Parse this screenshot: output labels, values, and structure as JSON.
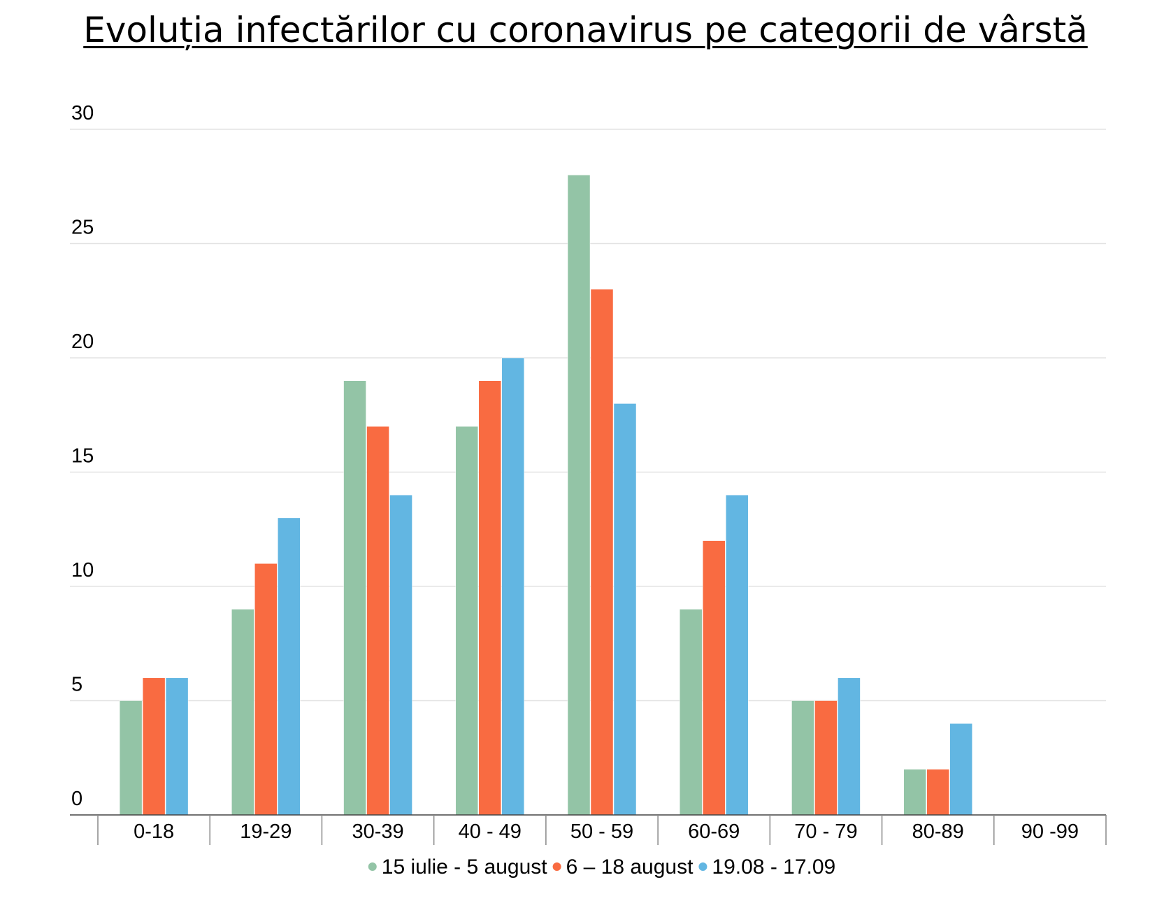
{
  "chart_data": {
    "type": "bar",
    "title": "Evoluția infectărilor cu coronavirus pe categorii de vârstă",
    "xlabel": "",
    "ylabel": "",
    "categories": [
      "0-18",
      "19-29",
      "30-39",
      "40 - 49",
      "50 - 59",
      "60-69",
      "70 - 79",
      "80-89",
      "90 -99"
    ],
    "series": [
      {
        "name": "15 iulie - 5 august",
        "color": "#93c4a6",
        "values": [
          5,
          9,
          19,
          17,
          28,
          9,
          5,
          2,
          0
        ]
      },
      {
        "name": "6 – 18 august",
        "color": "#f96b41",
        "values": [
          6,
          11,
          17,
          19,
          23,
          12,
          5,
          2,
          0
        ]
      },
      {
        "name": "19.08 - 17.09",
        "color": "#62b6e2",
        "values": [
          6,
          13,
          14,
          20,
          18,
          14,
          6,
          4,
          0
        ]
      }
    ],
    "ylim": [
      0,
      30
    ],
    "yticks": [
      0,
      5,
      10,
      15,
      20,
      25,
      30
    ],
    "grid": true,
    "legend_position": "bottom"
  }
}
